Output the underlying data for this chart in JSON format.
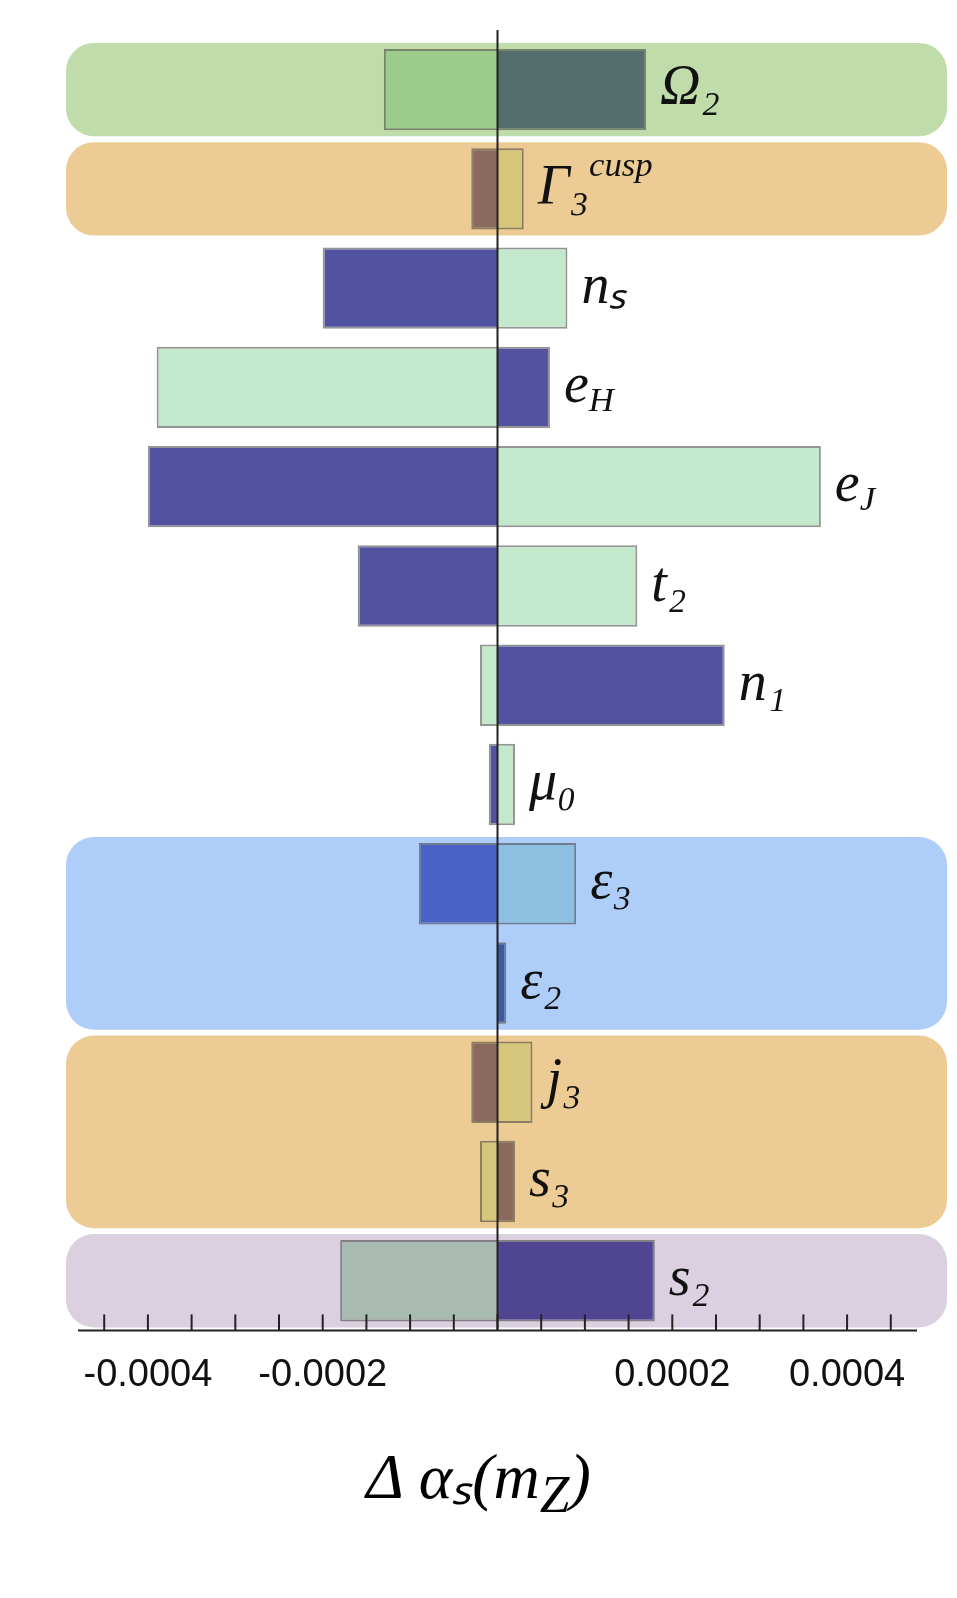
{
  "chart_data": {
    "type": "bar",
    "orientation": "horizontal",
    "stacked": true,
    "xlabel": "Δ αₛ(m$_{Z}$)",
    "categories": [
      "Ω₂",
      "Γ₃$^{cusp}$",
      "nₛ",
      "e$_{H}$",
      "e$_{J}$",
      "t₂",
      "n₁",
      "μ₀",
      "ε₃",
      "ε₂",
      "j₃",
      "s₃",
      "s₂"
    ],
    "series": [
      {
        "color": "#5252a0",
        "colors": [
          "#546e6e",
          "#8a6a5c",
          null,
          null,
          null,
          null,
          null,
          null,
          "#4a62c6",
          "#3c5aa0",
          "#8a6a5c",
          "#8a6a5c",
          "#4f4590"
        ],
        "values": [
          0.00017,
          -3e-05,
          -0.0002,
          6e-05,
          -0.0004,
          -0.00016,
          0.00026,
          -1e-05,
          -9e-05,
          1e-05,
          -3e-05,
          2e-05,
          0.00018
        ]
      },
      {
        "color": "#c4e8cc",
        "colors": [
          "#9ccb8c",
          "#d6c67c",
          null,
          null,
          null,
          null,
          null,
          null,
          "#8cc0e0",
          null,
          "#d6c67c",
          "#d6c67c",
          "#a9bab0"
        ],
        "values": [
          -0.00013,
          3e-05,
          8e-05,
          -0.00039,
          0.00037,
          0.00016,
          -2e-05,
          2e-05,
          9e-05,
          null,
          4e-05,
          -2e-05,
          -0.00018
        ]
      }
    ],
    "bands": [
      {
        "axis": "y",
        "from": "Ω₂",
        "to": "Ω₂",
        "color": "#c1dcab"
      },
      {
        "axis": "y",
        "from": "Γ₃$^{cusp}$",
        "to": "Γ₃$^{cusp}$",
        "color": "#eccb94"
      },
      {
        "axis": "y",
        "from": "ε₃",
        "to": "ε₂",
        "color": "#aecdf9"
      },
      {
        "axis": "y",
        "from": "j₃",
        "to": "s₃",
        "color": "#eccb94"
      },
      {
        "axis": "y",
        "from": "s₂",
        "to": "s₂",
        "color": "#dad0e0"
      }
    ],
    "xlim": [
      -0.00048,
      0.00048
    ],
    "xticks": [
      {
        "value": -0.00045,
        "label": null
      },
      {
        "value": -0.0004,
        "label": "-0.0004"
      },
      {
        "value": -0.00035,
        "label": null
      },
      {
        "value": -0.0003,
        "label": null
      },
      {
        "value": -0.00025,
        "label": null
      },
      {
        "value": -0.0002,
        "label": "-0.0002"
      },
      {
        "value": -0.00015,
        "label": null
      },
      {
        "value": -0.0001,
        "label": null
      },
      {
        "value": -5e-05,
        "label": null
      },
      {
        "value": 0,
        "label": null
      },
      {
        "value": 5e-05,
        "label": null
      },
      {
        "value": 0.0001,
        "label": null
      },
      {
        "value": 0.00015,
        "label": null
      },
      {
        "value": 0.0002,
        "label": "0.0002"
      },
      {
        "value": 0.00025,
        "label": null
      },
      {
        "value": 0.0003,
        "label": null
      },
      {
        "value": 0.00035,
        "label": null
      },
      {
        "value": 0.0004,
        "label": "0.0004"
      },
      {
        "value": 0.00045,
        "label": null
      }
    ],
    "grid": false,
    "legend": false
  }
}
